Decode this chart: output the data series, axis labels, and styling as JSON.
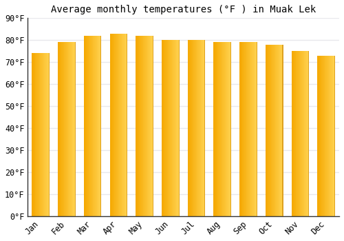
{
  "title": "Average monthly temperatures (°F ) in Muak Lek",
  "months": [
    "Jan",
    "Feb",
    "Mar",
    "Apr",
    "May",
    "Jun",
    "Jul",
    "Aug",
    "Sep",
    "Oct",
    "Nov",
    "Dec"
  ],
  "values": [
    74,
    79,
    82,
    83,
    82,
    80,
    80,
    79,
    79,
    78,
    75,
    73
  ],
  "ylim": [
    0,
    90
  ],
  "yticks": [
    0,
    10,
    20,
    30,
    40,
    50,
    60,
    70,
    80,
    90
  ],
  "bar_color_left": "#F5A800",
  "bar_color_right": "#FFD060",
  "bar_edge_color": "#CC8800",
  "background_color": "#FFFFFF",
  "grid_color": "#E8E8EC",
  "title_fontsize": 10,
  "tick_fontsize": 8.5,
  "bar_width": 0.68,
  "n_grad": 30
}
